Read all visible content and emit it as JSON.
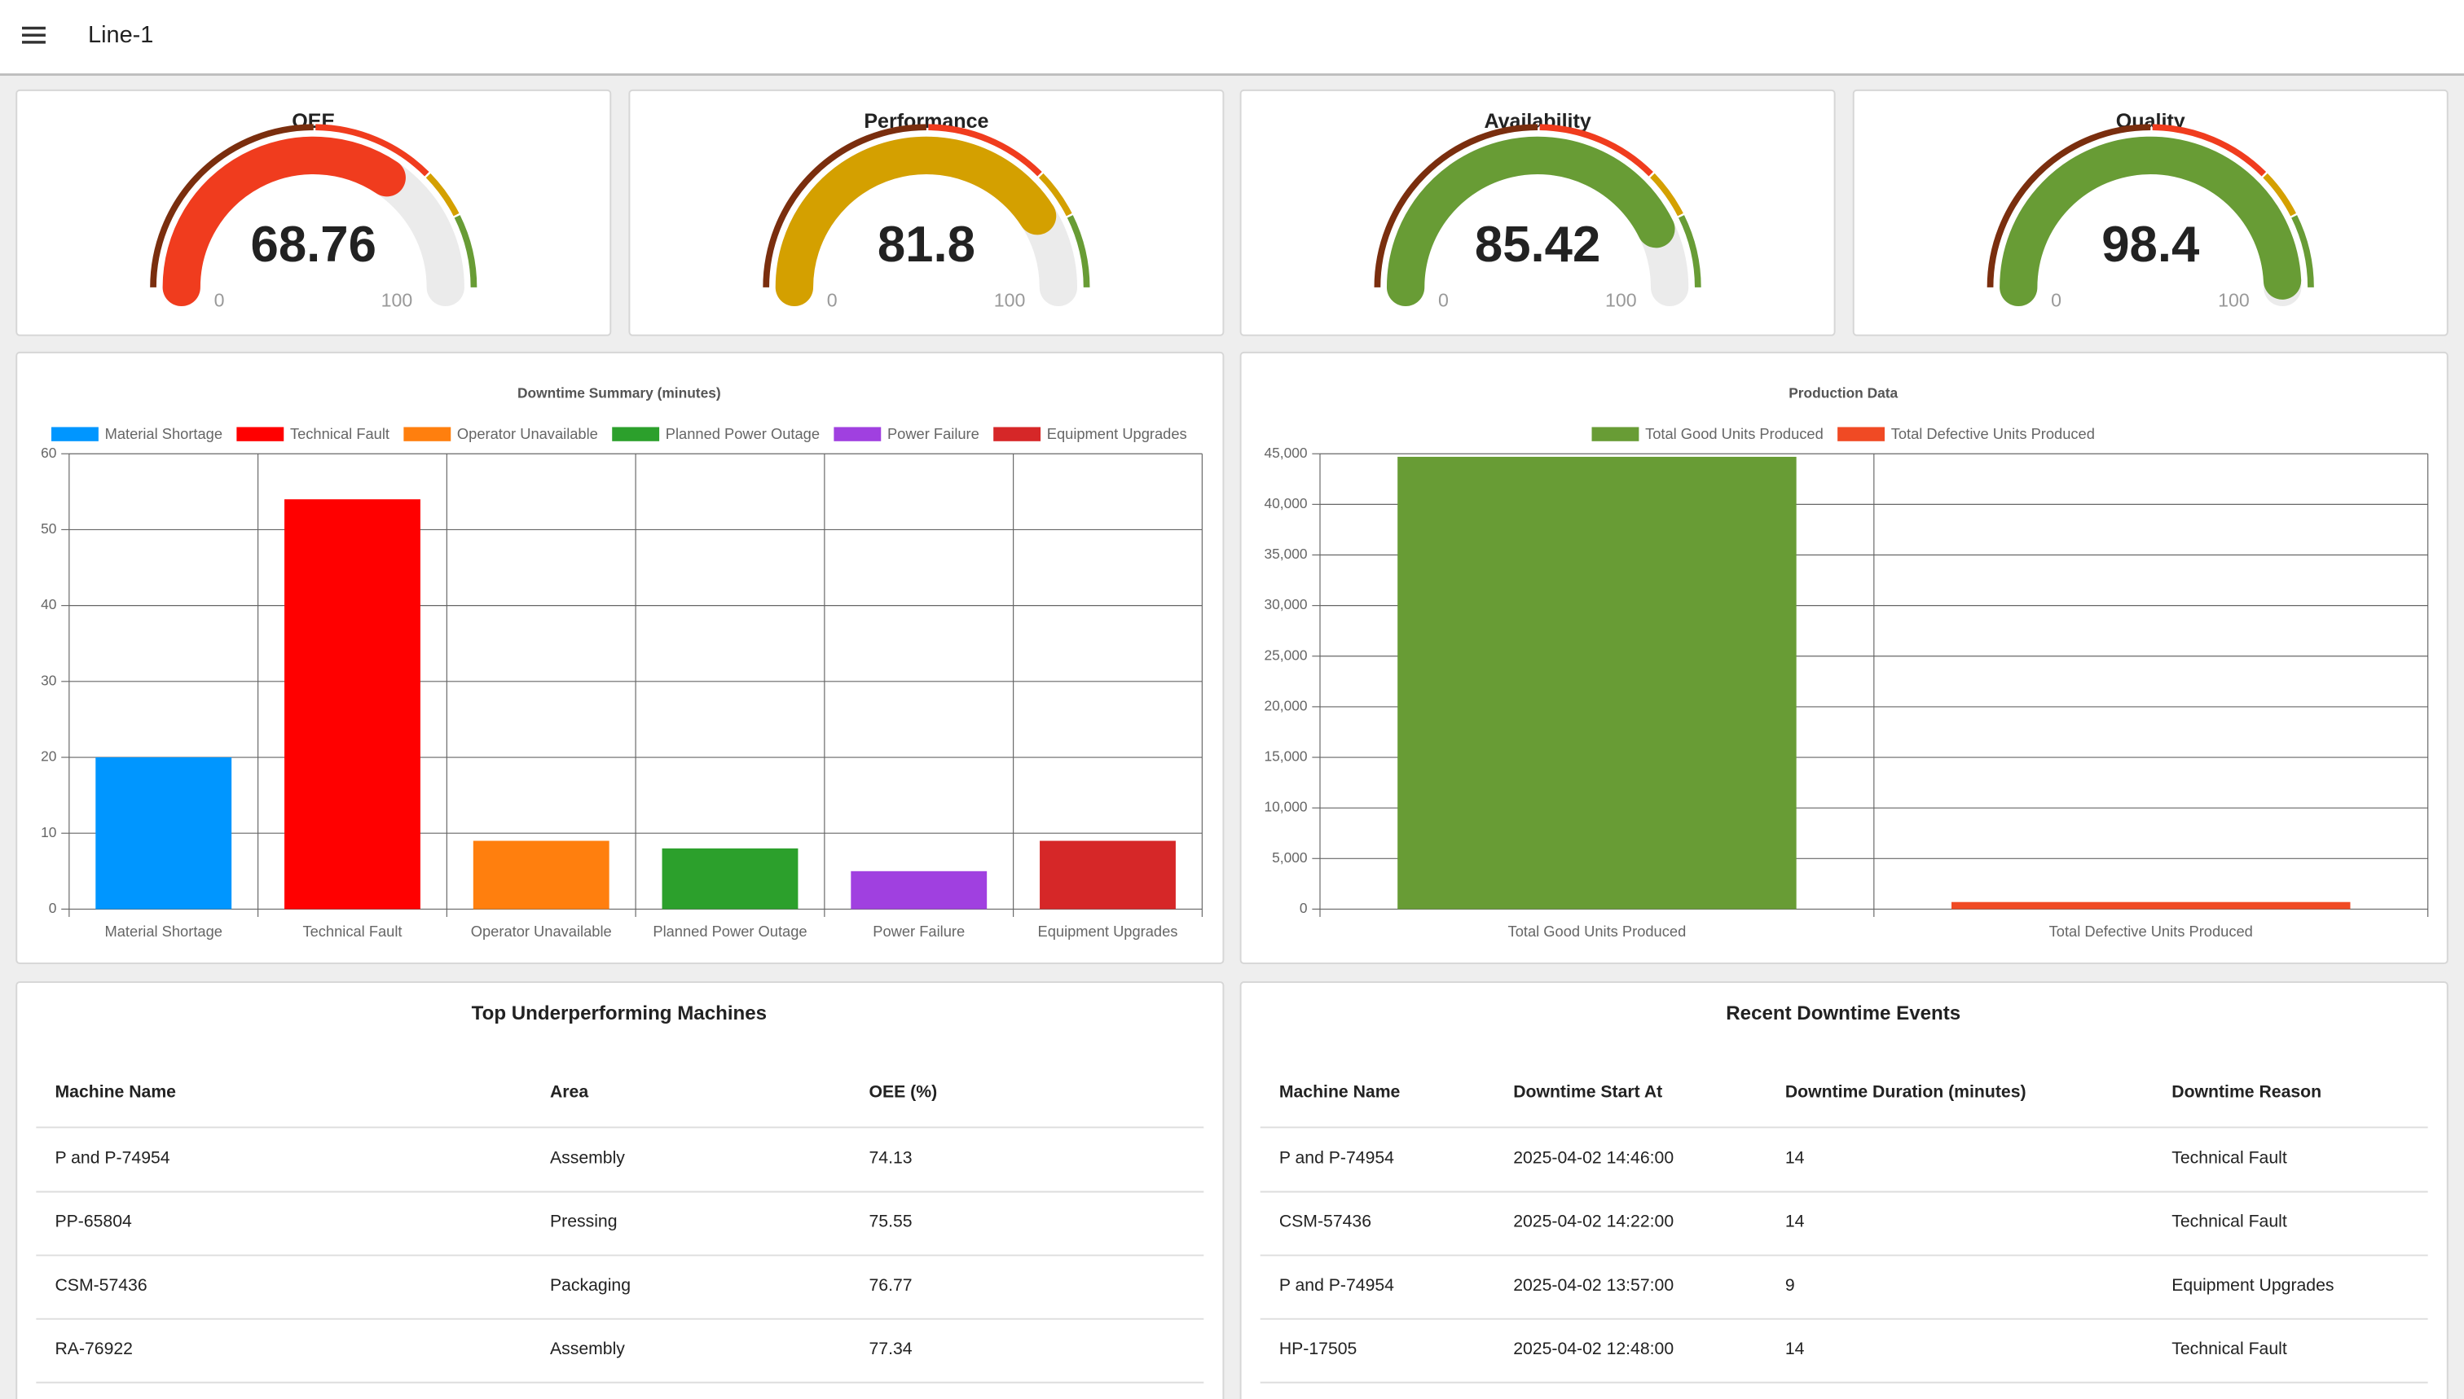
{
  "header": {
    "title": "Line-1"
  },
  "chart_data": [
    {
      "type": "gauge",
      "title": "OEE",
      "value": 68.76,
      "min": 0,
      "max": 100,
      "bands": [
        {
          "to": 50,
          "color": "#7a2e0e"
        },
        {
          "to": 75,
          "color": "#f03c1e"
        },
        {
          "to": 85,
          "color": "#d4a000"
        },
        {
          "to": 100,
          "color": "#689c35"
        }
      ]
    },
    {
      "type": "gauge",
      "title": "Performance",
      "value": 81.8,
      "min": 0,
      "max": 100,
      "bands": [
        {
          "to": 50,
          "color": "#7a2e0e"
        },
        {
          "to": 75,
          "color": "#f03c1e"
        },
        {
          "to": 85,
          "color": "#d4a000"
        },
        {
          "to": 100,
          "color": "#689c35"
        }
      ]
    },
    {
      "type": "gauge",
      "title": "Availability",
      "value": 85.42,
      "min": 0,
      "max": 100,
      "bands": [
        {
          "to": 50,
          "color": "#7a2e0e"
        },
        {
          "to": 75,
          "color": "#f03c1e"
        },
        {
          "to": 85,
          "color": "#d4a000"
        },
        {
          "to": 100,
          "color": "#689c35"
        }
      ]
    },
    {
      "type": "gauge",
      "title": "Quality",
      "value": 98.4,
      "min": 0,
      "max": 100,
      "bands": [
        {
          "to": 50,
          "color": "#7a2e0e"
        },
        {
          "to": 75,
          "color": "#f03c1e"
        },
        {
          "to": 85,
          "color": "#d4a000"
        },
        {
          "to": 100,
          "color": "#689c35"
        }
      ]
    },
    {
      "type": "bar",
      "title": "Downtime Summary (minutes)",
      "categories": [
        "Material Shortage",
        "Technical Fault",
        "Operator Unavailable",
        "Planned Power Outage",
        "Power Failure",
        "Equipment Upgrades"
      ],
      "values": [
        20,
        54,
        9,
        8,
        5,
        9
      ],
      "colors": [
        "#0096ff",
        "#ff0000",
        "#ff7f0e",
        "#2ca02c",
        "#a040e0",
        "#d62728"
      ],
      "ylim": [
        0,
        60
      ],
      "yticks": [
        0,
        10,
        20,
        30,
        40,
        50,
        60
      ],
      "grid": true
    },
    {
      "type": "bar",
      "title": "Production Data",
      "categories": [
        "Total Good Units Produced",
        "Total Defective Units Produced"
      ],
      "values": [
        44700,
        700
      ],
      "colors": [
        "#689c35",
        "#f04a24"
      ],
      "ylim": [
        0,
        45000
      ],
      "yticks": [
        0,
        {
          "value": 5000,
          "label": "5,000"
        },
        {
          "value": 10000,
          "label": "10,000"
        },
        {
          "value": 15000,
          "label": "15,000"
        },
        {
          "value": 20000,
          "label": "20,000"
        },
        {
          "value": 25000,
          "label": "25,000"
        },
        {
          "value": 30000,
          "label": "30,000"
        },
        {
          "value": 35000,
          "label": "35,000"
        },
        {
          "value": 40000,
          "label": "40,000"
        },
        {
          "value": 45000,
          "label": "45,000"
        }
      ],
      "grid": true
    }
  ],
  "tables": [
    {
      "title": "Top Underperforming Machines",
      "columns": [
        "Machine Name",
        "Area",
        "OEE (%)"
      ],
      "rows": [
        [
          "P and P-74954",
          "Assembly",
          74.13
        ],
        [
          "PP-65804",
          "Pressing",
          75.55
        ],
        [
          "CSM-57436",
          "Packaging",
          76.77
        ],
        [
          "RA-76922",
          "Assembly",
          77.34
        ]
      ]
    },
    {
      "title": "Recent Downtime Events",
      "columns": [
        "Machine Name",
        "Downtime Start At",
        "Downtime Duration (minutes)",
        "Downtime Reason"
      ],
      "rows": [
        [
          "P and P-74954",
          "2025-04-02 14:46:00",
          14,
          "Technical Fault"
        ],
        [
          "CSM-57436",
          "2025-04-02 14:22:00",
          14,
          "Technical Fault"
        ],
        [
          "P and P-74954",
          "2025-04-02 13:57:00",
          9,
          "Equipment Upgrades"
        ],
        [
          "HP-17505",
          "2025-04-02 12:48:00",
          14,
          "Technical Fault"
        ]
      ]
    }
  ]
}
